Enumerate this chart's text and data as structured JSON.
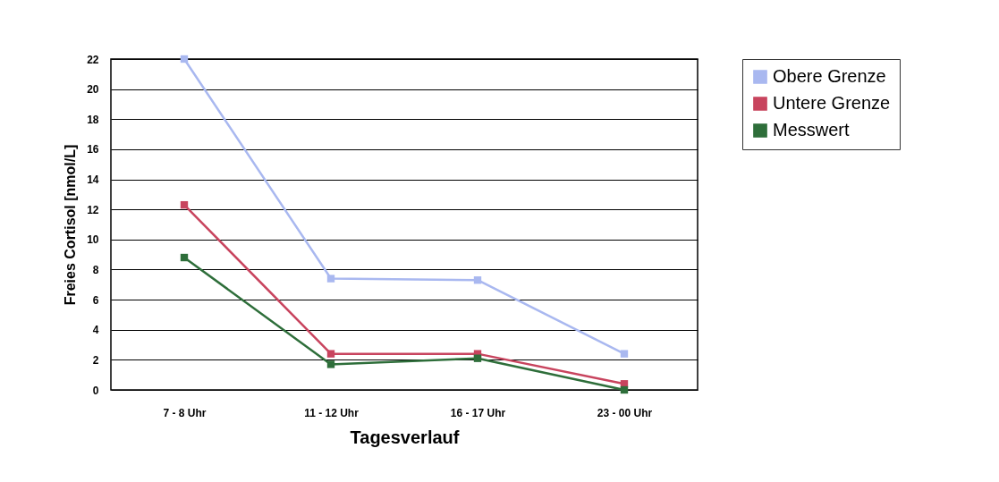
{
  "chart_data": {
    "type": "line",
    "xlabel": "Tagesverlauf",
    "ylabel": "Freies Cortisol [nmol/L]",
    "categories": [
      "7 - 8 Uhr",
      "11 - 12 Uhr",
      "16 - 17 Uhr",
      "23 - 00 Uhr"
    ],
    "series": [
      {
        "name": "Obere Grenze",
        "color": "#a9b8f0",
        "values": [
          22,
          7.4,
          7.3,
          2.4
        ]
      },
      {
        "name": "Untere Grenze",
        "color": "#c8445e",
        "values": [
          12.3,
          2.4,
          2.4,
          0.4
        ]
      },
      {
        "name": "Messwert",
        "color": "#2e6e3a",
        "values": [
          8.8,
          1.7,
          2.1,
          0
        ]
      }
    ],
    "ylim": [
      0,
      22
    ],
    "yticks": [
      0,
      2,
      4,
      6,
      8,
      10,
      12,
      14,
      16,
      18,
      20,
      22
    ],
    "grid": "y",
    "legend": "right",
    "marker": "square",
    "line_style": "solid"
  }
}
